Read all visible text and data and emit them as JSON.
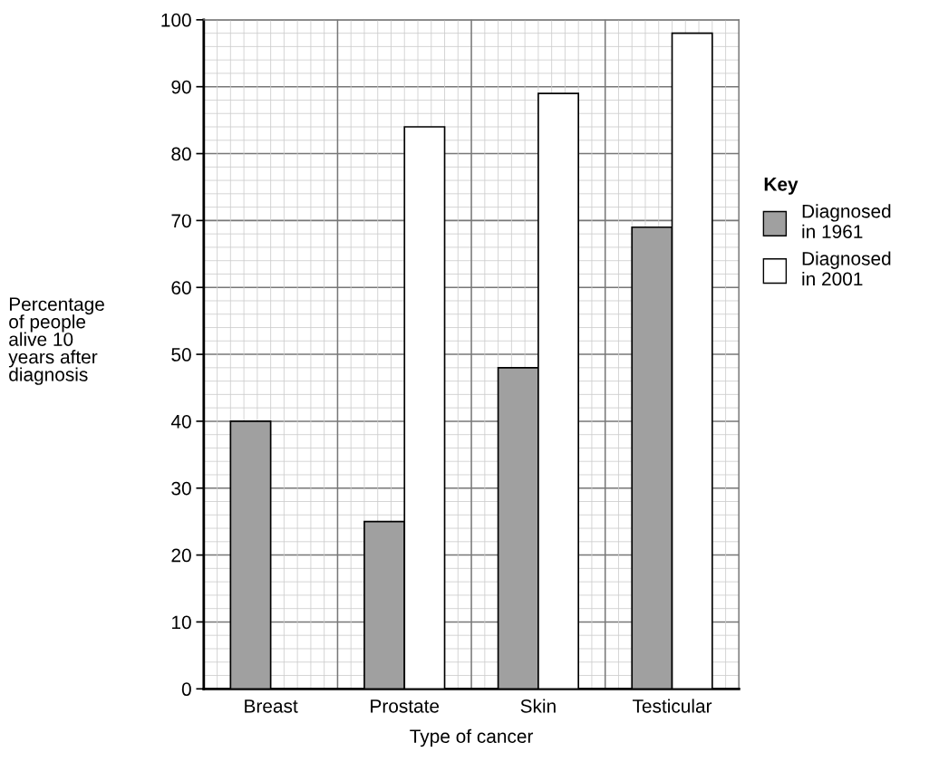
{
  "chart_data": {
    "type": "bar",
    "xlabel": "Type of cancer",
    "ylabel": "Percentage\nof people\nalive 10\nyears after\ndiagnosis",
    "legend_title": "Key",
    "categories": [
      "Breast",
      "Prostate",
      "Skin",
      "Testicular"
    ],
    "series": [
      {
        "name": "Diagnosed\nin 1961",
        "color": "#a0a0a0",
        "values": [
          40,
          25,
          48,
          69
        ]
      },
      {
        "name": "Diagnosed\nin 2001",
        "color": "#ffffff",
        "values": [
          null,
          84,
          89,
          98
        ]
      }
    ],
    "ylim": [
      0,
      100
    ],
    "yticks": [
      0,
      10,
      20,
      30,
      40,
      50,
      60,
      70,
      80,
      90,
      100
    ],
    "grid": true,
    "legend": "right"
  }
}
